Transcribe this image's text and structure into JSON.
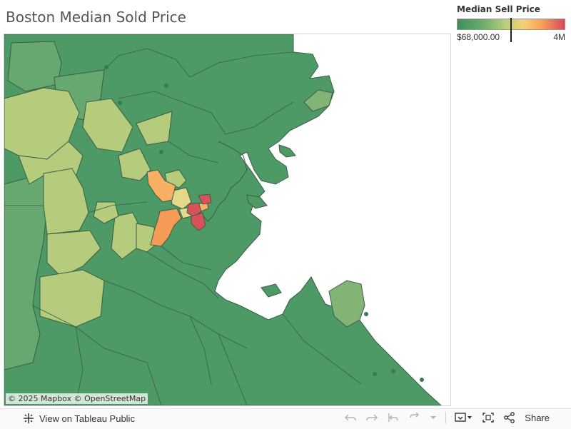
{
  "title": "Boston Median Sold Price",
  "legend": {
    "title": "Median Sell Price",
    "min_label": "$68,000.00",
    "max_label": "4M",
    "scale_colors": [
      "#3f8f5c",
      "#6fae6f",
      "#b9cf78",
      "#f6cf7a",
      "#f7a35a",
      "#d9485a"
    ]
  },
  "map": {
    "attribution": "© 2025 Mapbox © OpenStreetMap",
    "colors": {
      "dark_green": "#4d9a66",
      "mid_green": "#66a86f",
      "light_green": "#82b575",
      "yellow_green": "#b5cc7c",
      "light_yellow": "#e3d989",
      "orange": "#f7b062",
      "dark_orange": "#f39b57",
      "red": "#d9525a",
      "water": "#ffffff"
    }
  },
  "toolbar": {
    "view_label": "View on Tableau Public",
    "share_label": "Share"
  }
}
